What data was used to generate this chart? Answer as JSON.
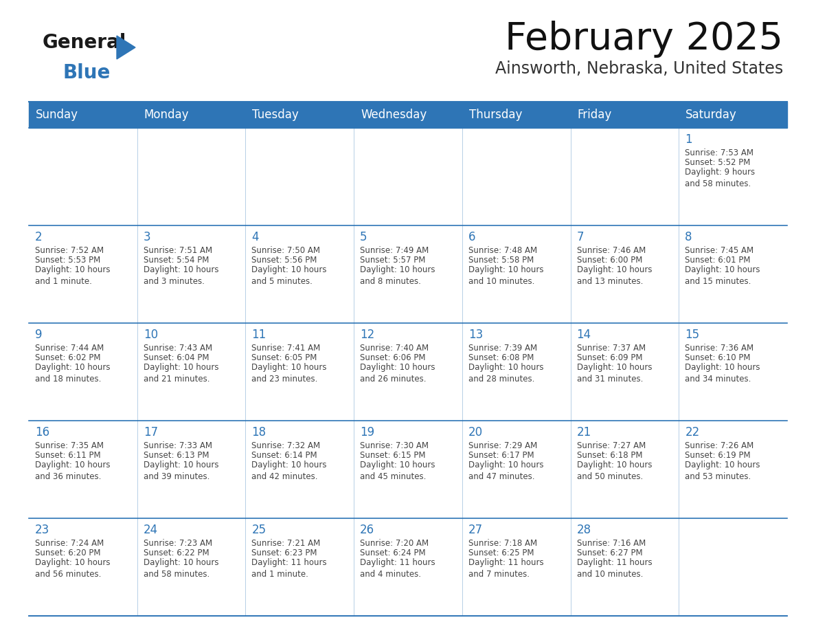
{
  "title": "February 2025",
  "subtitle": "Ainsworth, Nebraska, United States",
  "header_color": "#2E75B6",
  "header_text_color": "#FFFFFF",
  "cell_border_color": "#2E75B6",
  "day_number_color": "#2E75B6",
  "cell_text_color": "#444444",
  "background_color": "#FFFFFF",
  "days_of_week": [
    "Sunday",
    "Monday",
    "Tuesday",
    "Wednesday",
    "Thursday",
    "Friday",
    "Saturday"
  ],
  "logo_general_color": "#1a1a1a",
  "logo_blue_color": "#2E75B6",
  "calendar_data": [
    [
      null,
      null,
      null,
      null,
      null,
      null,
      {
        "day": "1",
        "sunrise": "Sunrise: 7:53 AM",
        "sunset": "Sunset: 5:52 PM",
        "daylight": "Daylight: 9 hours\nand 58 minutes."
      }
    ],
    [
      {
        "day": "2",
        "sunrise": "Sunrise: 7:52 AM",
        "sunset": "Sunset: 5:53 PM",
        "daylight": "Daylight: 10 hours\nand 1 minute."
      },
      {
        "day": "3",
        "sunrise": "Sunrise: 7:51 AM",
        "sunset": "Sunset: 5:54 PM",
        "daylight": "Daylight: 10 hours\nand 3 minutes."
      },
      {
        "day": "4",
        "sunrise": "Sunrise: 7:50 AM",
        "sunset": "Sunset: 5:56 PM",
        "daylight": "Daylight: 10 hours\nand 5 minutes."
      },
      {
        "day": "5",
        "sunrise": "Sunrise: 7:49 AM",
        "sunset": "Sunset: 5:57 PM",
        "daylight": "Daylight: 10 hours\nand 8 minutes."
      },
      {
        "day": "6",
        "sunrise": "Sunrise: 7:48 AM",
        "sunset": "Sunset: 5:58 PM",
        "daylight": "Daylight: 10 hours\nand 10 minutes."
      },
      {
        "day": "7",
        "sunrise": "Sunrise: 7:46 AM",
        "sunset": "Sunset: 6:00 PM",
        "daylight": "Daylight: 10 hours\nand 13 minutes."
      },
      {
        "day": "8",
        "sunrise": "Sunrise: 7:45 AM",
        "sunset": "Sunset: 6:01 PM",
        "daylight": "Daylight: 10 hours\nand 15 minutes."
      }
    ],
    [
      {
        "day": "9",
        "sunrise": "Sunrise: 7:44 AM",
        "sunset": "Sunset: 6:02 PM",
        "daylight": "Daylight: 10 hours\nand 18 minutes."
      },
      {
        "day": "10",
        "sunrise": "Sunrise: 7:43 AM",
        "sunset": "Sunset: 6:04 PM",
        "daylight": "Daylight: 10 hours\nand 21 minutes."
      },
      {
        "day": "11",
        "sunrise": "Sunrise: 7:41 AM",
        "sunset": "Sunset: 6:05 PM",
        "daylight": "Daylight: 10 hours\nand 23 minutes."
      },
      {
        "day": "12",
        "sunrise": "Sunrise: 7:40 AM",
        "sunset": "Sunset: 6:06 PM",
        "daylight": "Daylight: 10 hours\nand 26 minutes."
      },
      {
        "day": "13",
        "sunrise": "Sunrise: 7:39 AM",
        "sunset": "Sunset: 6:08 PM",
        "daylight": "Daylight: 10 hours\nand 28 minutes."
      },
      {
        "day": "14",
        "sunrise": "Sunrise: 7:37 AM",
        "sunset": "Sunset: 6:09 PM",
        "daylight": "Daylight: 10 hours\nand 31 minutes."
      },
      {
        "day": "15",
        "sunrise": "Sunrise: 7:36 AM",
        "sunset": "Sunset: 6:10 PM",
        "daylight": "Daylight: 10 hours\nand 34 minutes."
      }
    ],
    [
      {
        "day": "16",
        "sunrise": "Sunrise: 7:35 AM",
        "sunset": "Sunset: 6:11 PM",
        "daylight": "Daylight: 10 hours\nand 36 minutes."
      },
      {
        "day": "17",
        "sunrise": "Sunrise: 7:33 AM",
        "sunset": "Sunset: 6:13 PM",
        "daylight": "Daylight: 10 hours\nand 39 minutes."
      },
      {
        "day": "18",
        "sunrise": "Sunrise: 7:32 AM",
        "sunset": "Sunset: 6:14 PM",
        "daylight": "Daylight: 10 hours\nand 42 minutes."
      },
      {
        "day": "19",
        "sunrise": "Sunrise: 7:30 AM",
        "sunset": "Sunset: 6:15 PM",
        "daylight": "Daylight: 10 hours\nand 45 minutes."
      },
      {
        "day": "20",
        "sunrise": "Sunrise: 7:29 AM",
        "sunset": "Sunset: 6:17 PM",
        "daylight": "Daylight: 10 hours\nand 47 minutes."
      },
      {
        "day": "21",
        "sunrise": "Sunrise: 7:27 AM",
        "sunset": "Sunset: 6:18 PM",
        "daylight": "Daylight: 10 hours\nand 50 minutes."
      },
      {
        "day": "22",
        "sunrise": "Sunrise: 7:26 AM",
        "sunset": "Sunset: 6:19 PM",
        "daylight": "Daylight: 10 hours\nand 53 minutes."
      }
    ],
    [
      {
        "day": "23",
        "sunrise": "Sunrise: 7:24 AM",
        "sunset": "Sunset: 6:20 PM",
        "daylight": "Daylight: 10 hours\nand 56 minutes."
      },
      {
        "day": "24",
        "sunrise": "Sunrise: 7:23 AM",
        "sunset": "Sunset: 6:22 PM",
        "daylight": "Daylight: 10 hours\nand 58 minutes."
      },
      {
        "day": "25",
        "sunrise": "Sunrise: 7:21 AM",
        "sunset": "Sunset: 6:23 PM",
        "daylight": "Daylight: 11 hours\nand 1 minute."
      },
      {
        "day": "26",
        "sunrise": "Sunrise: 7:20 AM",
        "sunset": "Sunset: 6:24 PM",
        "daylight": "Daylight: 11 hours\nand 4 minutes."
      },
      {
        "day": "27",
        "sunrise": "Sunrise: 7:18 AM",
        "sunset": "Sunset: 6:25 PM",
        "daylight": "Daylight: 11 hours\nand 7 minutes."
      },
      {
        "day": "28",
        "sunrise": "Sunrise: 7:16 AM",
        "sunset": "Sunset: 6:27 PM",
        "daylight": "Daylight: 11 hours\nand 10 minutes."
      },
      null
    ]
  ]
}
